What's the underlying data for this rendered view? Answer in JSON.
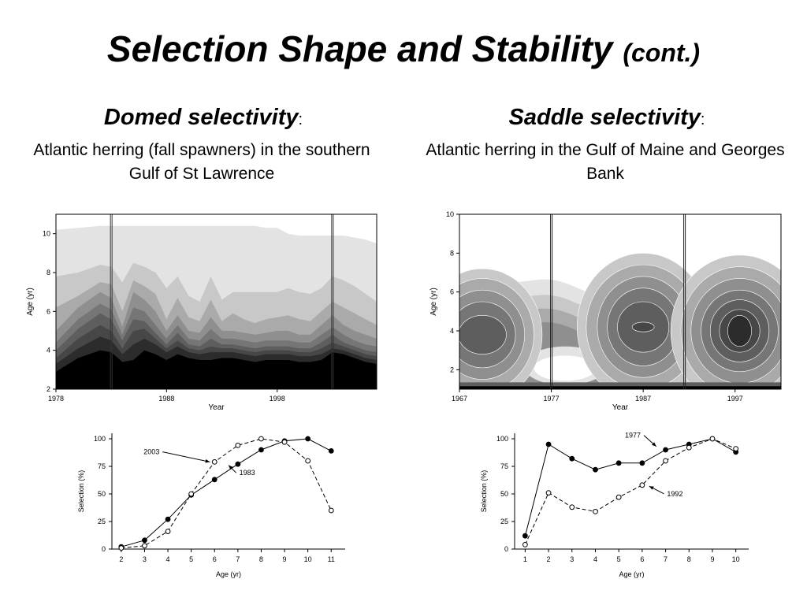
{
  "slide": {
    "title": "Selection Shape and Stability",
    "title_suffix": "(cont.)"
  },
  "left": {
    "heading": "Domed selectivity",
    "heading_colon": ":",
    "description": "Atlantic herring (fall spawners) in the southern Gulf of St Lawrence"
  },
  "right": {
    "heading": "Saddle selectivity",
    "heading_colon": ":",
    "description": "Atlantic herring in the Gulf of Maine and Georges Bank"
  },
  "colors": {
    "contour_levels": [
      "#ffffff",
      "#e3e3e3",
      "#c8c8c8",
      "#aaaaaa",
      "#8f8f8f",
      "#767676",
      "#5e5e5e",
      "#474747",
      "#2c2c2c",
      "#000000"
    ]
  },
  "chart_data": [
    {
      "id": "domed-contour",
      "type": "heatmap",
      "xlabel": "Year",
      "ylabel": "Age (yr)",
      "xticks": [
        "1978",
        "1988",
        "1998"
      ],
      "xtick_values": [
        1978,
        1988,
        1998
      ],
      "yticks": [
        "2",
        "4",
        "6",
        "8",
        "10"
      ],
      "ytick_values": [
        2,
        4,
        6,
        8,
        10
      ],
      "xlim": [
        1978,
        2007
      ],
      "ylim": [
        2,
        11
      ],
      "vertical_lines": [
        1983,
        2003
      ],
      "years": [
        1978,
        1980,
        1982,
        1983,
        1984,
        1985,
        1986,
        1987,
        1988,
        1989,
        1990,
        1991,
        1992,
        1993,
        1994,
        1995,
        1996,
        1997,
        1998,
        1999,
        2000,
        2001,
        2002,
        2003,
        2004,
        2005,
        2006,
        2007
      ],
      "contour_boundaries": [
        [
          2.4,
          3.1,
          3.3,
          3.3,
          3.0,
          2.8,
          3.3,
          3.2,
          3.2,
          3.3,
          3.2,
          3.1,
          3.1,
          3.2,
          3.2,
          3.1,
          3.1,
          3.2,
          3.2,
          3.2,
          3.1,
          3.1,
          3.1,
          3.6,
          3.5,
          3.3,
          3.2,
          3.0
        ],
        [
          2.9,
          3.6,
          4.0,
          3.9,
          3.4,
          3.5,
          4.0,
          3.8,
          3.5,
          3.8,
          3.6,
          3.5,
          3.5,
          3.6,
          3.6,
          3.5,
          3.4,
          3.5,
          3.5,
          3.5,
          3.4,
          3.4,
          3.5,
          3.9,
          3.8,
          3.6,
          3.4,
          3.3
        ],
        [
          3.3,
          4.1,
          4.7,
          4.5,
          3.8,
          4.3,
          4.6,
          4.3,
          3.9,
          4.2,
          3.9,
          3.8,
          3.9,
          3.9,
          3.9,
          3.8,
          3.7,
          3.8,
          3.8,
          3.8,
          3.7,
          3.7,
          3.8,
          4.1,
          4.0,
          3.8,
          3.6,
          3.5
        ],
        [
          3.6,
          4.6,
          5.3,
          5.0,
          4.1,
          5.0,
          5.1,
          4.6,
          4.1,
          4.5,
          4.1,
          4.0,
          4.2,
          4.1,
          4.1,
          4.0,
          3.9,
          4.0,
          4.0,
          4.0,
          3.9,
          3.9,
          4.1,
          4.4,
          4.2,
          4.0,
          3.8,
          3.7
        ],
        [
          4.0,
          5.1,
          5.9,
          5.6,
          4.5,
          5.6,
          5.5,
          4.9,
          4.3,
          4.9,
          4.3,
          4.2,
          4.6,
          4.3,
          4.3,
          4.2,
          4.1,
          4.2,
          4.2,
          4.2,
          4.1,
          4.1,
          4.4,
          4.8,
          4.4,
          4.2,
          4.0,
          3.9
        ],
        [
          4.4,
          5.6,
          6.4,
          6.1,
          4.8,
          6.2,
          6.0,
          5.3,
          4.6,
          5.3,
          4.6,
          4.5,
          5.1,
          4.6,
          4.6,
          4.5,
          4.4,
          4.5,
          4.5,
          4.5,
          4.4,
          4.4,
          4.8,
          5.2,
          4.8,
          4.5,
          4.3,
          4.2
        ],
        [
          5.0,
          6.2,
          7.0,
          6.7,
          5.2,
          7.0,
          6.6,
          6.0,
          5.0,
          5.8,
          5.0,
          4.9,
          5.7,
          5.0,
          5.0,
          4.9,
          4.8,
          4.9,
          5.0,
          5.0,
          4.8,
          4.8,
          5.3,
          5.8,
          5.3,
          5.0,
          4.8,
          4.6
        ],
        [
          6.2,
          6.8,
          7.5,
          7.4,
          6.0,
          7.6,
          7.3,
          6.9,
          5.6,
          6.7,
          5.7,
          5.5,
          6.6,
          5.5,
          5.9,
          5.6,
          5.4,
          5.6,
          5.7,
          5.8,
          5.6,
          5.5,
          6.0,
          6.5,
          6.2,
          5.9,
          5.6,
          5.3
        ],
        [
          7.8,
          8.0,
          8.4,
          8.3,
          7.5,
          8.5,
          8.3,
          8.0,
          7.2,
          7.8,
          6.8,
          6.5,
          7.8,
          6.6,
          7.0,
          7.0,
          7.0,
          7.0,
          7.0,
          7.2,
          7.0,
          6.9,
          7.2,
          7.8,
          7.6,
          7.3,
          6.9,
          6.5
        ],
        [
          10.2,
          10.3,
          10.4,
          10.4,
          10.4,
          10.4,
          10.4,
          10.4,
          10.4,
          10.4,
          10.4,
          10.4,
          10.4,
          10.4,
          10.4,
          10.4,
          10.4,
          10.3,
          10.3,
          10.0,
          9.9,
          9.9,
          9.9,
          9.9,
          9.9,
          9.8,
          9.7,
          9.5
        ]
      ]
    },
    {
      "id": "saddle-contour",
      "type": "heatmap",
      "xlabel": "Year",
      "ylabel": "Age (yr)",
      "xticks": [
        "1967",
        "1977",
        "1987",
        "1997"
      ],
      "xtick_values": [
        1967,
        1977,
        1987,
        1997
      ],
      "yticks": [
        "2",
        "4",
        "6",
        "8",
        "10"
      ],
      "ytick_values": [
        2,
        4,
        6,
        8,
        10
      ],
      "xlim": [
        1967,
        2002
      ],
      "ylim": [
        1,
        10
      ],
      "vertical_lines": [
        1977,
        1991.5
      ],
      "blobs": [
        {
          "cx": 1969.5,
          "cy": 3.8,
          "rx": [
            6.5,
            5.6,
            4.6,
            3.6,
            2.6
          ],
          "ry": [
            3.4,
            2.9,
            2.3,
            1.7,
            1.0
          ],
          "level_start": 1
        },
        {
          "cx": 1987,
          "cy": 4.2,
          "rx": [
            7.2,
            6.2,
            5.0,
            3.9,
            2.8,
            1.2
          ],
          "ry": [
            3.8,
            3.2,
            2.6,
            2.0,
            1.3,
            0.25
          ],
          "level_start": 1
        },
        {
          "cx": 1997.5,
          "cy": 4.0,
          "rx": [
            7.5,
            6.4,
            5.3,
            4.2,
            3.2,
            2.2,
            1.3
          ],
          "ry": [
            3.9,
            3.3,
            2.7,
            2.1,
            1.6,
            1.1,
            0.8
          ],
          "level_start": 1
        }
      ],
      "white_patch": {
        "cx": 1978.5,
        "cy": 2.2,
        "rx": 4.5,
        "ry": 1.0
      }
    },
    {
      "id": "domed-selection",
      "type": "line",
      "xlabel": "Age (yr)",
      "ylabel": "Selection (%)",
      "xlim": [
        1.6,
        11.6
      ],
      "ylim": [
        0,
        105
      ],
      "xticks": [
        "2",
        "3",
        "4",
        "5",
        "6",
        "7",
        "8",
        "9",
        "10",
        "11"
      ],
      "xtick_values": [
        2,
        3,
        4,
        5,
        6,
        7,
        8,
        9,
        10,
        11
      ],
      "yticks": [
        "0",
        "25",
        "50",
        "75",
        "100"
      ],
      "ytick_values": [
        0,
        25,
        50,
        75,
        100
      ],
      "series": [
        {
          "name": "1983",
          "style": "solid",
          "marker": "filled",
          "x": [
            2,
            3,
            4,
            5,
            6,
            7,
            8,
            9,
            10,
            11
          ],
          "values": [
            2,
            8,
            27,
            49,
            63,
            77,
            90,
            98,
            100,
            89
          ]
        },
        {
          "name": "2003",
          "style": "dashed",
          "marker": "open",
          "x": [
            2,
            3,
            4,
            5,
            6,
            7,
            8,
            9,
            10,
            11
          ],
          "values": [
            1,
            3,
            16,
            50,
            79,
            94,
            100,
            97,
            80,
            35
          ]
        }
      ],
      "annotations": [
        {
          "text": "2003",
          "x": 3.3,
          "y": 86,
          "arrow_to": [
            5.8,
            79
          ]
        },
        {
          "text": "1983",
          "x": 7.4,
          "y": 67,
          "arrow_to": [
            6.6,
            76
          ]
        }
      ]
    },
    {
      "id": "saddle-selection",
      "type": "line",
      "xlabel": "Age (yr)",
      "ylabel": "Selection (%)",
      "xlim": [
        0.55,
        10.55
      ],
      "ylim": [
        0,
        105
      ],
      "xticks": [
        "1",
        "2",
        "3",
        "4",
        "5",
        "6",
        "7",
        "8",
        "9",
        "10"
      ],
      "xtick_values": [
        1,
        2,
        3,
        4,
        5,
        6,
        7,
        8,
        9,
        10
      ],
      "yticks": [
        "0",
        "25",
        "50",
        "75",
        "100"
      ],
      "ytick_values": [
        0,
        25,
        50,
        75,
        100
      ],
      "series": [
        {
          "name": "1977",
          "style": "solid",
          "marker": "filled",
          "x": [
            1,
            2,
            3,
            4,
            5,
            6,
            7,
            8,
            9,
            10
          ],
          "values": [
            12,
            95,
            82,
            72,
            78,
            78,
            90,
            95,
            100,
            88
          ]
        },
        {
          "name": "1992",
          "style": "dashed",
          "marker": "open",
          "x": [
            1,
            2,
            3,
            4,
            5,
            6,
            7,
            8,
            9,
            10
          ],
          "values": [
            4,
            51,
            38,
            34,
            47,
            58,
            80,
            92,
            100,
            91
          ]
        }
      ],
      "annotations": [
        {
          "text": "1977",
          "x": 5.6,
          "y": 101,
          "arrow_to": [
            6.6,
            93
          ]
        },
        {
          "text": "1992",
          "x": 7.4,
          "y": 48,
          "arrow_to": [
            6.3,
            57
          ]
        }
      ]
    }
  ]
}
